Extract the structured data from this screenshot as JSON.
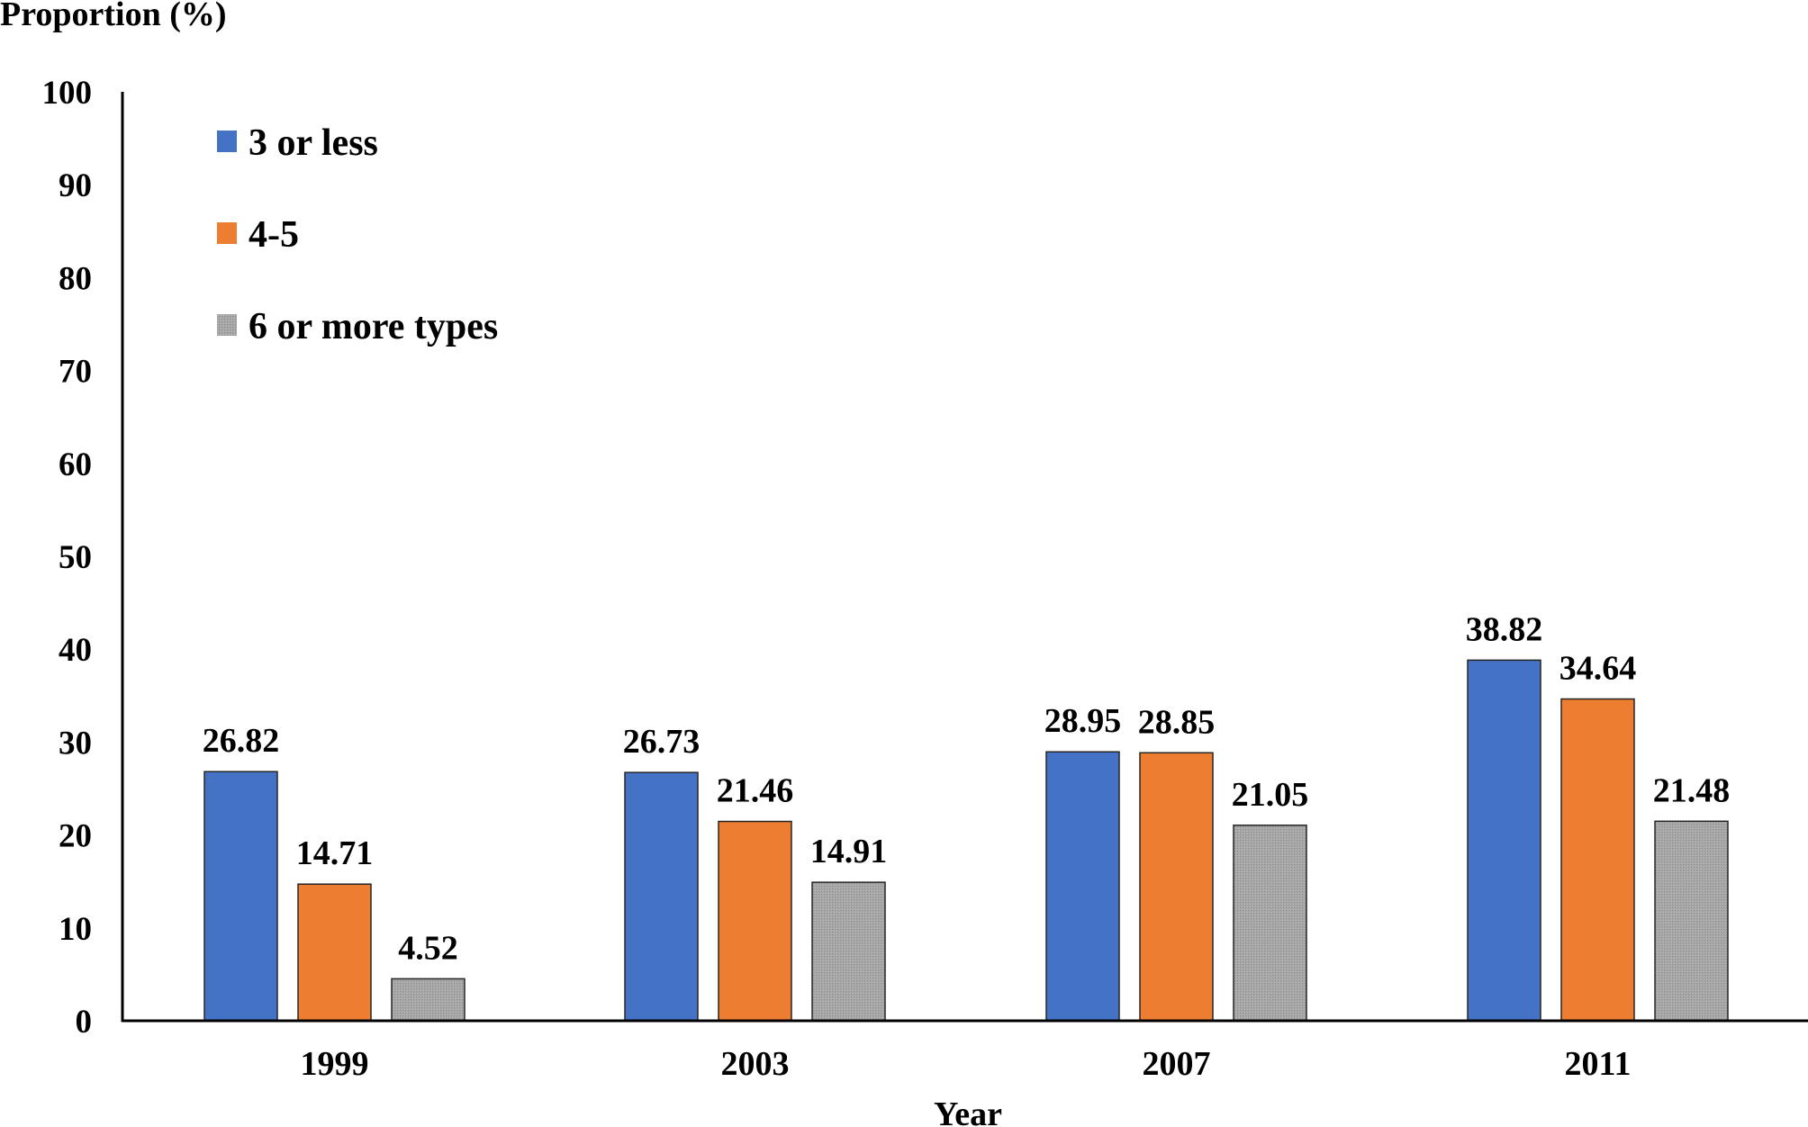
{
  "chart_data": {
    "type": "bar",
    "title": "",
    "ylabel": "Proportion (%)",
    "xlabel": "Year",
    "categories": [
      "1999",
      "2003",
      "2007",
      "2011"
    ],
    "series": [
      {
        "name": "3 or less",
        "color": "#4472c4",
        "values": [
          26.82,
          26.73,
          28.95,
          38.82
        ],
        "labels": [
          "26.82",
          "26.73",
          "28.95",
          "38.82"
        ]
      },
      {
        "name": "4-5",
        "color": "#ed7d31",
        "values": [
          14.71,
          21.46,
          28.85,
          34.64
        ],
        "labels": [
          "14.71",
          "21.46",
          "28.85",
          "34.64"
        ]
      },
      {
        "name": "6 or more types",
        "color": "#a5a5a5",
        "pattern": "dotted",
        "values": [
          4.52,
          14.91,
          21.05,
          21.48
        ],
        "labels": [
          "4.52",
          "14.91",
          "21.05",
          "21.48"
        ]
      }
    ],
    "ylim": [
      0,
      100
    ],
    "yticks": [
      "0",
      "10",
      "20",
      "30",
      "40",
      "50",
      "60",
      "70",
      "80",
      "90",
      "100"
    ],
    "grid": false,
    "legend_position": "top-left"
  }
}
